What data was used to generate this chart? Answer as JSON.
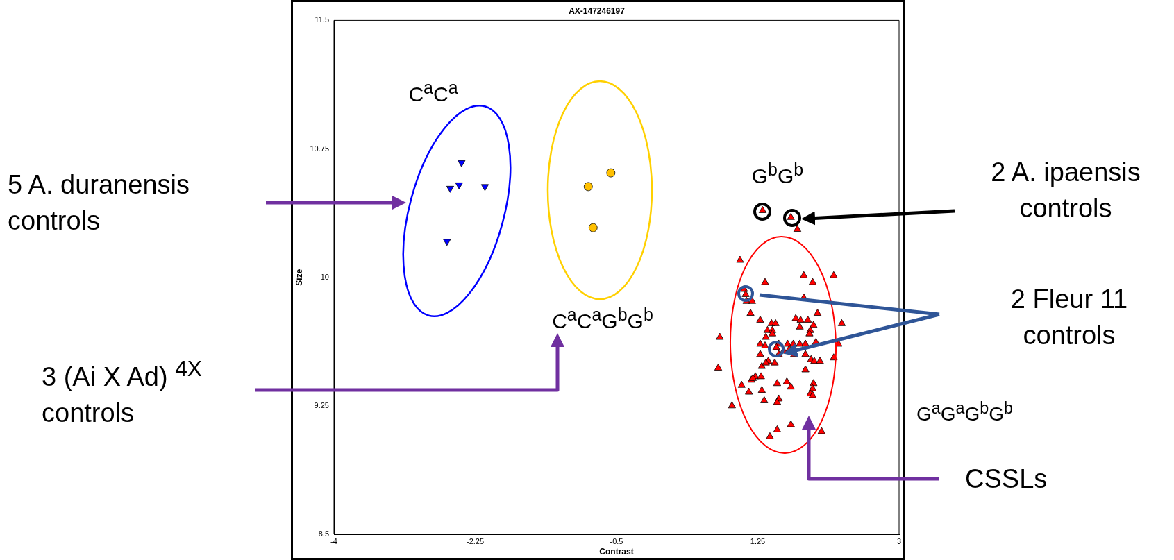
{
  "chart_data": {
    "type": "scatter",
    "title": "AX-147246197",
    "xlabel": "Contrast",
    "ylabel": "Size",
    "xlim": [
      -4,
      3
    ],
    "xticks": [
      -4,
      -2.25,
      -0.5,
      1.25,
      3
    ],
    "ylim": [
      8.5,
      11.5
    ],
    "yticks": [
      8.5,
      9.25,
      10,
      10.75,
      11.5
    ],
    "grid": false,
    "legend": false,
    "series": [
      {
        "color": "#0000ff",
        "marker": "triangle_down",
        "x": [
          -2.42,
          -2.56,
          -2.45,
          -2.13,
          -2.6
        ],
        "values": [
          10.67,
          10.52,
          10.54,
          10.53,
          10.21
        ]
      },
      {
        "color": "#ffc000",
        "marker": "circle",
        "x": [
          -0.85,
          -0.57,
          -0.79
        ],
        "values": [
          10.53,
          10.61,
          10.29
        ]
      },
      {
        "color": "#ff0000",
        "marker": "triangle",
        "x": [
          1.31,
          1.66,
          1.74,
          1.03,
          1.34,
          1.82,
          1.93,
          2.19,
          1.08,
          1.1,
          1.11,
          1.18,
          1.82,
          1.16,
          1.99,
          1.28,
          1.42,
          1.47,
          1.72,
          1.78,
          1.87,
          1.94,
          2.29,
          1.37,
          1.43,
          1.77,
          1.9,
          1.35,
          1.43,
          1.89,
          0.78,
          1.28,
          1.34,
          1.51,
          1.62,
          1.69,
          1.77,
          1.84,
          1.97,
          2.25,
          1.48,
          1.64,
          1.57,
          1.7,
          1.51,
          1.84,
          1.28,
          1.38,
          1.46,
          1.3,
          1.35,
          1.91,
          1.95,
          2.02,
          2.19,
          0.76,
          1.84,
          1.22,
          1.29,
          1.17,
          1.19,
          1.61,
          1.66,
          1.94,
          1.93,
          1.05,
          1.49,
          1.3,
          1.14,
          1.9,
          1.93,
          1.51,
          1.33,
          1.49,
          0.93,
          1.66,
          1.49,
          2.04,
          1.4
        ],
        "values": [
          10.39,
          10.35,
          10.28,
          10.1,
          9.97,
          10.01,
          9.97,
          10.01,
          9.93,
          9.9,
          9.86,
          9.86,
          9.88,
          9.79,
          9.79,
          9.75,
          9.73,
          9.73,
          9.76,
          9.75,
          9.75,
          9.72,
          9.73,
          9.69,
          9.69,
          9.71,
          9.69,
          9.65,
          9.67,
          9.67,
          9.65,
          9.61,
          9.6,
          9.61,
          9.61,
          9.61,
          9.61,
          9.61,
          9.62,
          9.61,
          9.59,
          9.58,
          9.57,
          9.55,
          9.55,
          9.55,
          9.55,
          9.51,
          9.5,
          9.48,
          9.5,
          9.52,
          9.51,
          9.51,
          9.53,
          9.47,
          9.46,
          9.42,
          9.42,
          9.4,
          9.41,
          9.39,
          9.36,
          9.38,
          9.35,
          9.37,
          9.38,
          9.34,
          9.33,
          9.32,
          9.31,
          9.29,
          9.28,
          9.27,
          9.25,
          9.14,
          9.11,
          9.1,
          9.07
        ]
      }
    ],
    "annotations": [
      "C$^{a}$C$^{a}$",
      "C$^{a}$C$^{a}$G$^{b}$G$^{b}$",
      "G$^{b}$G$^{b}$",
      "G$^{a}$G$^{a}$G$^{b}$G$^{b}$",
      "5 A. duranensis controls",
      "3 (Ai X Ad) $^{4X}$ controls",
      "2 A. ipaensis controls",
      "2 Fleur 11 controls",
      "CSSLs"
    ]
  }
}
